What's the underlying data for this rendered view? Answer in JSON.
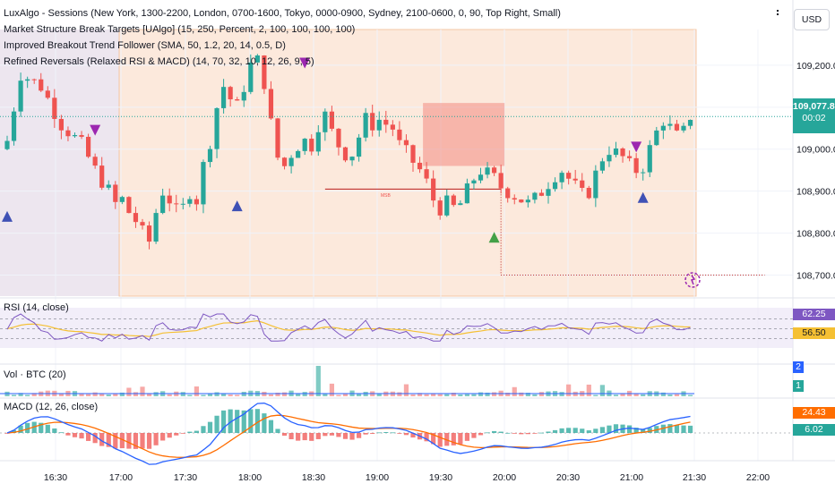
{
  "currency": "USD",
  "indicators": {
    "sessions": "LuxAlgo - Sessions (New York, 1300-2200, London, 0700-1600, Tokyo, 0000-0900, Sydney, 2100-0600, 0, 90, Top Right, Small)",
    "msb": "Market Structure Break Targets [UAlgo] (15, 250, Percent, 2, 100, 100, 100, 100)",
    "breakout": "Improved Breakout Trend Follower (SMA, 50, 1.2, 20, 14, 0.5, D)",
    "reversals": "Refined Reversals (Relaxed RSI & MACD) (14, 70, 32, 10, 12, 26, 9, 5)"
  },
  "msb_label": "MSB",
  "colors": {
    "up": "#26a69a",
    "down": "#ef5350",
    "rsi": "#7e57c2",
    "rsi_ma": "#f5c033",
    "macd": "#2962ff",
    "signal": "#ff6d00",
    "session_ny": "#fce9dc",
    "session_tokyo": "#ede6ef"
  },
  "price_panel": {
    "y_ticks": [
      "109,200.00",
      "109,100.00",
      "109,000.00",
      "108,900.00",
      "108,800.00",
      "108,700.00"
    ],
    "last_price": "109,077.86",
    "countdown": "00:02"
  },
  "rsi_panel": {
    "label": "RSI (14, close)",
    "value": "62.25",
    "ma_value": "56.50"
  },
  "volume_panel": {
    "label": "Vol · BTC (20)",
    "value_top": "2",
    "value_bottom": "1"
  },
  "macd_panel": {
    "label": "MACD (12, 26, close)",
    "value_top": "24.43",
    "value_bottom": "6.02"
  },
  "x_ticks": [
    "16:30",
    "17:00",
    "17:30",
    "18:00",
    "18:30",
    "19:00",
    "19:30",
    "20:00",
    "20:30",
    "21:00",
    "21:30",
    "22:00"
  ],
  "chart_data": {
    "type": "candlestick",
    "y_range": [
      108650,
      109285
    ],
    "last_price": 109077.86,
    "close_path": [
      [
        0,
        109020
      ],
      [
        2,
        109180
      ],
      [
        5,
        109150
      ],
      [
        8,
        109060
      ],
      [
        11,
        109010
      ],
      [
        13,
        108950
      ],
      [
        15,
        108900
      ],
      [
        16,
        108870
      ],
      [
        17,
        108880
      ],
      [
        18,
        108850
      ],
      [
        19,
        108830
      ],
      [
        20,
        108800
      ],
      [
        21,
        108780
      ],
      [
        22,
        108850
      ],
      [
        23,
        108900
      ],
      [
        24,
        108880
      ],
      [
        25,
        108850
      ],
      [
        26,
        108860
      ],
      [
        27,
        108900
      ],
      [
        28,
        108880
      ],
      [
        29,
        108960
      ],
      [
        30,
        109020
      ],
      [
        31,
        109100
      ],
      [
        32,
        109150
      ],
      [
        33,
        109120
      ],
      [
        34,
        109100
      ],
      [
        35,
        109150
      ],
      [
        36,
        109200
      ],
      [
        37,
        109210
      ],
      [
        38,
        109160
      ],
      [
        39,
        109060
      ],
      [
        40,
        108980
      ],
      [
        41,
        108960
      ],
      [
        42,
        108990
      ],
      [
        43,
        109010
      ],
      [
        44,
        109020
      ],
      [
        45,
        109010
      ],
      [
        46,
        109060
      ],
      [
        47,
        109080
      ],
      [
        48,
        109040
      ],
      [
        49,
        109010
      ],
      [
        50,
        108990
      ],
      [
        51,
        108990
      ],
      [
        52,
        109030
      ],
      [
        53,
        109070
      ],
      [
        54,
        109060
      ],
      [
        55,
        109070
      ],
      [
        56,
        109060
      ],
      [
        57,
        109050
      ],
      [
        58,
        109010
      ],
      [
        59,
        108990
      ],
      [
        60,
        108970
      ],
      [
        61,
        108950
      ],
      [
        62,
        108920
      ],
      [
        63,
        108880
      ],
      [
        64,
        108860
      ],
      [
        65,
        108870
      ],
      [
        66,
        108860
      ],
      [
        67,
        108870
      ],
      [
        68,
        108900
      ],
      [
        69,
        108930
      ],
      [
        70,
        108950
      ],
      [
        71,
        108940
      ],
      [
        72,
        108930
      ],
      [
        73,
        108910
      ],
      [
        74,
        108900
      ],
      [
        75,
        108890
      ],
      [
        76,
        108880
      ],
      [
        77,
        108870
      ],
      [
        78,
        108880
      ],
      [
        79,
        108900
      ],
      [
        80,
        108920
      ],
      [
        81,
        108940
      ],
      [
        82,
        108950
      ],
      [
        83,
        108930
      ],
      [
        84,
        108910
      ],
      [
        85,
        108890
      ],
      [
        86,
        108900
      ],
      [
        87,
        108940
      ],
      [
        88,
        108980
      ],
      [
        89,
        109000
      ],
      [
        90,
        108990
      ],
      [
        91,
        108980
      ],
      [
        92,
        108960
      ],
      [
        93,
        108950
      ],
      [
        94,
        108960
      ],
      [
        95,
        109000
      ],
      [
        96,
        109040
      ],
      [
        97,
        109070
      ],
      [
        98,
        109050
      ],
      [
        99,
        109030
      ],
      [
        100,
        109040
      ],
      [
        101,
        109080
      ]
    ],
    "candle_count": 102,
    "triangles": [
      {
        "type": "down",
        "index": 13,
        "price": 109045
      },
      {
        "type": "down",
        "index": 44,
        "price": 109205
      },
      {
        "type": "down",
        "index": 93,
        "price": 109005
      },
      {
        "type": "up",
        "index": 0,
        "price": 108840
      },
      {
        "type": "up",
        "index": 34,
        "price": 108865
      },
      {
        "type": "up",
        "index": 72,
        "price": 108790
      },
      {
        "type": "up",
        "index": 94,
        "price": 108885
      }
    ],
    "msb_zone": {
      "start_index": 62,
      "end_index": 73,
      "low": 108960,
      "high": 109110
    },
    "msb_line": {
      "start_index": 47,
      "end_index": 73,
      "price": 108905
    },
    "target_line": {
      "start_index": 73,
      "end_index": 112,
      "price": 108700
    },
    "rsi": {
      "levels": [
        70,
        50,
        30
      ],
      "last": 62.25,
      "ma_last": 56.5
    },
    "volume": {
      "spike_index": 46
    },
    "macd": {
      "last_macd": 24.43,
      "last_hist": 6.02
    }
  }
}
